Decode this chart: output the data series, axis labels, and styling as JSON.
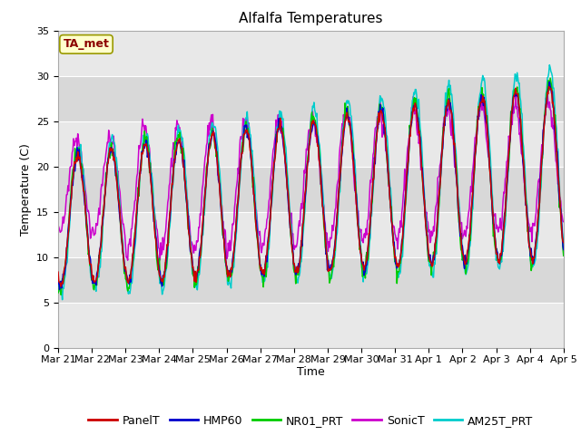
{
  "title": "Alfalfa Temperatures",
  "xlabel": "Time",
  "ylabel": "Temperature (C)",
  "ylim": [
    0,
    35
  ],
  "yticks": [
    0,
    5,
    10,
    15,
    20,
    25,
    30,
    35
  ],
  "date_labels": [
    "Mar 21",
    "Mar 22",
    "Mar 23",
    "Mar 24",
    "Mar 25",
    "Mar 26",
    "Mar 27",
    "Mar 28",
    "Mar 29",
    "Mar 30",
    "Mar 31",
    "Apr 1",
    "Apr 2",
    "Apr 3",
    "Apr 4",
    "Apr 5"
  ],
  "colors": {
    "PanelT": "#cc0000",
    "HMP60": "#0000cc",
    "NR01_PRT": "#00cc00",
    "SonicT": "#cc00cc",
    "AM25T_PRT": "#00cccc"
  },
  "band_colors": [
    "#e8e8e8",
    "#d8d8d8"
  ],
  "annotation_text": "TA_met",
  "annotation_color": "#8b0000",
  "annotation_bg": "#ffffcc",
  "annotation_edge": "#999900",
  "title_fontsize": 11,
  "axis_fontsize": 9,
  "tick_fontsize": 8,
  "legend_fontsize": 9
}
